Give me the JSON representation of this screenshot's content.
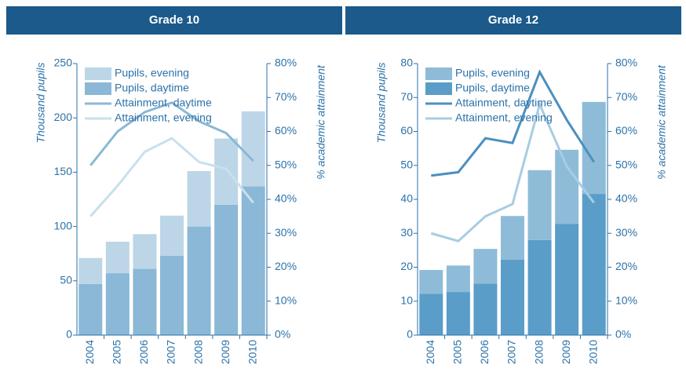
{
  "chart_data": [
    {
      "type": "bar_line",
      "title": "Grade 10",
      "categories": [
        "2004",
        "2005",
        "2006",
        "2007",
        "2008",
        "2009",
        "2010"
      ],
      "y_label": "Thousand pupils",
      "y2_label": "% academic attainment",
      "ylim": [
        0,
        250
      ],
      "yticks": [
        0,
        50,
        100,
        150,
        200,
        250
      ],
      "y2lim": [
        0,
        80
      ],
      "y2ticks": [
        {
          "value": 0,
          "label": "0%"
        },
        {
          "value": 10,
          "label": "10%"
        },
        {
          "value": 20,
          "label": "20%"
        },
        {
          "value": 30,
          "label": "30%"
        },
        {
          "value": 40,
          "label": "40%"
        },
        {
          "value": 50,
          "label": "50%"
        },
        {
          "value": 60,
          "label": "60%"
        },
        {
          "value": 70,
          "label": "70%"
        },
        {
          "value": 80,
          "label": "80%"
        }
      ],
      "series": [
        {
          "name": "Pupils, evening",
          "kind": "bar",
          "color": "#bcd6e8",
          "values": [
            24,
            29,
            32,
            37,
            51,
            61,
            69
          ]
        },
        {
          "name": "Pupils, daytime",
          "kind": "bar",
          "color": "#8ab8d6",
          "values": [
            47,
            57,
            61,
            73,
            100,
            120,
            137
          ]
        },
        {
          "name": "Attainment, daytime",
          "kind": "line",
          "axis": "y2",
          "color": "#8ab8d6",
          "values": [
            50,
            60,
            65.7,
            68.5,
            63,
            59.5,
            51.3
          ]
        },
        {
          "name": "Attainment, evening",
          "kind": "line",
          "axis": "y2",
          "color": "#c7e0ee",
          "values": [
            35,
            44,
            54,
            58,
            51,
            49,
            39
          ]
        }
      ]
    },
    {
      "type": "bar_line",
      "title": "Grade 12",
      "categories": [
        "2004",
        "2005",
        "2006",
        "2007",
        "2008",
        "2009",
        "2010"
      ],
      "y_label": "Thousand pupils",
      "y2_label": "% academic attainment",
      "ylim": [
        0,
        80
      ],
      "yticks": [
        0,
        10,
        20,
        30,
        40,
        50,
        60,
        70,
        80
      ],
      "y2lim": [
        0,
        80
      ],
      "y2ticks": [
        {
          "value": 0,
          "label": "0%"
        },
        {
          "value": 10,
          "label": "10%"
        },
        {
          "value": 20,
          "label": "20%"
        },
        {
          "value": 30,
          "label": "30%"
        },
        {
          "value": 40,
          "label": "40%"
        },
        {
          "value": 50,
          "label": "50%"
        },
        {
          "value": 60,
          "label": "60%"
        },
        {
          "value": 70,
          "label": "70%"
        },
        {
          "value": 80,
          "label": "80%"
        }
      ],
      "series": [
        {
          "name": "Pupils, evening",
          "kind": "bar",
          "color": "#8ebcd8",
          "values": [
            7,
            7.8,
            10.2,
            12.9,
            20.6,
            21.8,
            27.1
          ]
        },
        {
          "name": "Pupils, daytime",
          "kind": "bar",
          "color": "#5a9dc8",
          "values": [
            12.2,
            12.7,
            15.2,
            22.2,
            28,
            32.8,
            41.6
          ]
        },
        {
          "name": "Attainment, daytime",
          "kind": "line",
          "axis": "y2",
          "color": "#4a90c0",
          "values": [
            47,
            48,
            58,
            56.6,
            77.5,
            63.4,
            51
          ]
        },
        {
          "name": "Attainment, evening",
          "kind": "line",
          "axis": "y2",
          "color": "#a8cce2",
          "values": [
            30,
            27.7,
            35,
            38.6,
            68,
            49.7,
            39
          ]
        }
      ]
    }
  ]
}
